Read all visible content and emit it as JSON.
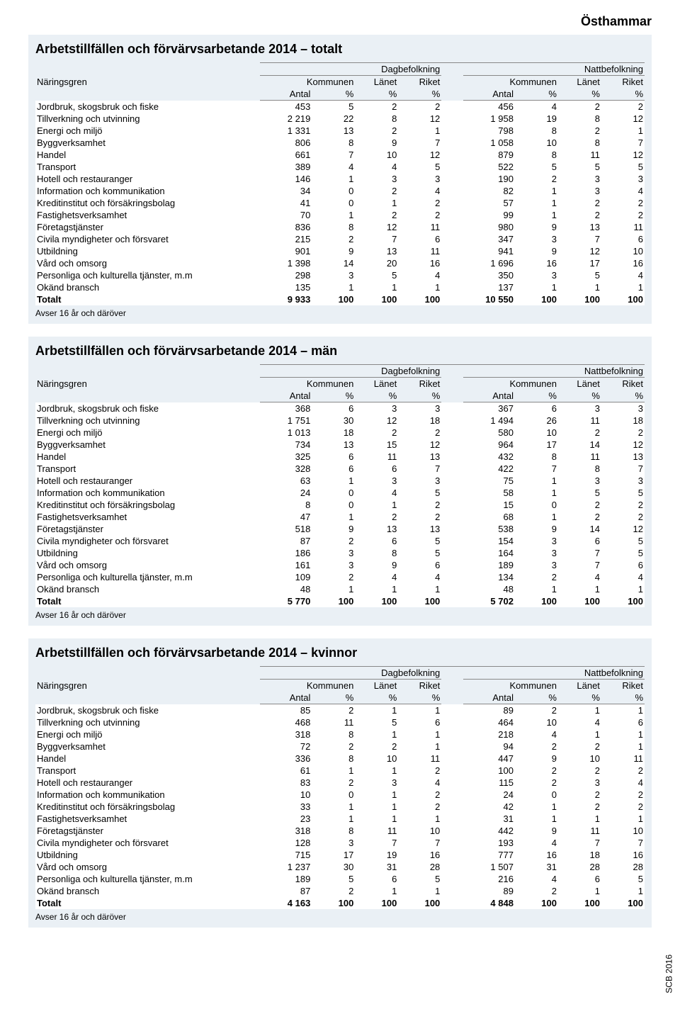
{
  "page": {
    "municipality": "Östhammar",
    "source_label": "SCB 2016"
  },
  "labels": {
    "naringsgren": "Näringsgren",
    "dagbefolkning": "Dagbefolkning",
    "nattbefolkning": "Nattbefolkning",
    "kommunen": "Kommunen",
    "lanet": "Länet",
    "riket": "Riket",
    "antal": "Antal",
    "pct": "%",
    "footnote": "Avser 16 år och däröver",
    "total": "Totalt"
  },
  "industries": [
    "Jordbruk, skogsbruk och fiske",
    "Tillverkning och utvinning",
    "Energi och miljö",
    "Byggverksamhet",
    "Handel",
    "Transport",
    "Hotell och restauranger",
    "Information och kommunikation",
    "Kreditinstitut och försäkringsbolag",
    "Fastighetsverksamhet",
    "Företagstjänster",
    "Civila myndigheter och försvaret",
    "Utbildning",
    "Vård och omsorg",
    "Personliga och kulturella tjänster, m.m",
    "Okänd bransch"
  ],
  "tables": [
    {
      "title": "Arbetstillfällen och förvärvsarbetande 2014 – totalt",
      "rows": [
        [
          "453",
          "5",
          "2",
          "2",
          "456",
          "4",
          "2",
          "2"
        ],
        [
          "2 219",
          "22",
          "8",
          "12",
          "1 958",
          "19",
          "8",
          "12"
        ],
        [
          "1 331",
          "13",
          "2",
          "1",
          "798",
          "8",
          "2",
          "1"
        ],
        [
          "806",
          "8",
          "9",
          "7",
          "1 058",
          "10",
          "8",
          "7"
        ],
        [
          "661",
          "7",
          "10",
          "12",
          "879",
          "8",
          "11",
          "12"
        ],
        [
          "389",
          "4",
          "4",
          "5",
          "522",
          "5",
          "5",
          "5"
        ],
        [
          "146",
          "1",
          "3",
          "3",
          "190",
          "2",
          "3",
          "3"
        ],
        [
          "34",
          "0",
          "2",
          "4",
          "82",
          "1",
          "3",
          "4"
        ],
        [
          "41",
          "0",
          "1",
          "2",
          "57",
          "1",
          "2",
          "2"
        ],
        [
          "70",
          "1",
          "2",
          "2",
          "99",
          "1",
          "2",
          "2"
        ],
        [
          "836",
          "8",
          "12",
          "11",
          "980",
          "9",
          "13",
          "11"
        ],
        [
          "215",
          "2",
          "7",
          "6",
          "347",
          "3",
          "7",
          "6"
        ],
        [
          "901",
          "9",
          "13",
          "11",
          "941",
          "9",
          "12",
          "10"
        ],
        [
          "1 398",
          "14",
          "20",
          "16",
          "1 696",
          "16",
          "17",
          "16"
        ],
        [
          "298",
          "3",
          "5",
          "4",
          "350",
          "3",
          "5",
          "4"
        ],
        [
          "135",
          "1",
          "1",
          "1",
          "137",
          "1",
          "1",
          "1"
        ]
      ],
      "total": [
        "9 933",
        "100",
        "100",
        "100",
        "10 550",
        "100",
        "100",
        "100"
      ]
    },
    {
      "title": "Arbetstillfällen och förvärvsarbetande 2014 – män",
      "rows": [
        [
          "368",
          "6",
          "3",
          "3",
          "367",
          "6",
          "3",
          "3"
        ],
        [
          "1 751",
          "30",
          "12",
          "18",
          "1 494",
          "26",
          "11",
          "18"
        ],
        [
          "1 013",
          "18",
          "2",
          "2",
          "580",
          "10",
          "2",
          "2"
        ],
        [
          "734",
          "13",
          "15",
          "12",
          "964",
          "17",
          "14",
          "12"
        ],
        [
          "325",
          "6",
          "11",
          "13",
          "432",
          "8",
          "11",
          "13"
        ],
        [
          "328",
          "6",
          "6",
          "7",
          "422",
          "7",
          "8",
          "7"
        ],
        [
          "63",
          "1",
          "3",
          "3",
          "75",
          "1",
          "3",
          "3"
        ],
        [
          "24",
          "0",
          "4",
          "5",
          "58",
          "1",
          "5",
          "5"
        ],
        [
          "8",
          "0",
          "1",
          "2",
          "15",
          "0",
          "2",
          "2"
        ],
        [
          "47",
          "1",
          "2",
          "2",
          "68",
          "1",
          "2",
          "2"
        ],
        [
          "518",
          "9",
          "13",
          "13",
          "538",
          "9",
          "14",
          "12"
        ],
        [
          "87",
          "2",
          "6",
          "5",
          "154",
          "3",
          "6",
          "5"
        ],
        [
          "186",
          "3",
          "8",
          "5",
          "164",
          "3",
          "7",
          "5"
        ],
        [
          "161",
          "3",
          "9",
          "6",
          "189",
          "3",
          "7",
          "6"
        ],
        [
          "109",
          "2",
          "4",
          "4",
          "134",
          "2",
          "4",
          "4"
        ],
        [
          "48",
          "1",
          "1",
          "1",
          "48",
          "1",
          "1",
          "1"
        ]
      ],
      "total": [
        "5 770",
        "100",
        "100",
        "100",
        "5 702",
        "100",
        "100",
        "100"
      ]
    },
    {
      "title": "Arbetstillfällen och förvärvsarbetande 2014 – kvinnor",
      "rows": [
        [
          "85",
          "2",
          "1",
          "1",
          "89",
          "2",
          "1",
          "1"
        ],
        [
          "468",
          "11",
          "5",
          "6",
          "464",
          "10",
          "4",
          "6"
        ],
        [
          "318",
          "8",
          "1",
          "1",
          "218",
          "4",
          "1",
          "1"
        ],
        [
          "72",
          "2",
          "2",
          "1",
          "94",
          "2",
          "2",
          "1"
        ],
        [
          "336",
          "8",
          "10",
          "11",
          "447",
          "9",
          "10",
          "11"
        ],
        [
          "61",
          "1",
          "1",
          "2",
          "100",
          "2",
          "2",
          "2"
        ],
        [
          "83",
          "2",
          "3",
          "4",
          "115",
          "2",
          "3",
          "4"
        ],
        [
          "10",
          "0",
          "1",
          "2",
          "24",
          "0",
          "2",
          "2"
        ],
        [
          "33",
          "1",
          "1",
          "2",
          "42",
          "1",
          "2",
          "2"
        ],
        [
          "23",
          "1",
          "1",
          "1",
          "31",
          "1",
          "1",
          "1"
        ],
        [
          "318",
          "8",
          "11",
          "10",
          "442",
          "9",
          "11",
          "10"
        ],
        [
          "128",
          "3",
          "7",
          "7",
          "193",
          "4",
          "7",
          "7"
        ],
        [
          "715",
          "17",
          "19",
          "16",
          "777",
          "16",
          "18",
          "16"
        ],
        [
          "1 237",
          "30",
          "31",
          "28",
          "1 507",
          "31",
          "28",
          "28"
        ],
        [
          "189",
          "5",
          "6",
          "5",
          "216",
          "4",
          "6",
          "5"
        ],
        [
          "87",
          "2",
          "1",
          "1",
          "89",
          "2",
          "1",
          "1"
        ]
      ],
      "total": [
        "4 163",
        "100",
        "100",
        "100",
        "4 848",
        "100",
        "100",
        "100"
      ]
    }
  ],
  "style": {
    "section_bg": "#eaf0f5",
    "row_bg": "#ffffff",
    "border_color": "#888888",
    "title_fontsize": 18,
    "body_fontsize": 13
  }
}
